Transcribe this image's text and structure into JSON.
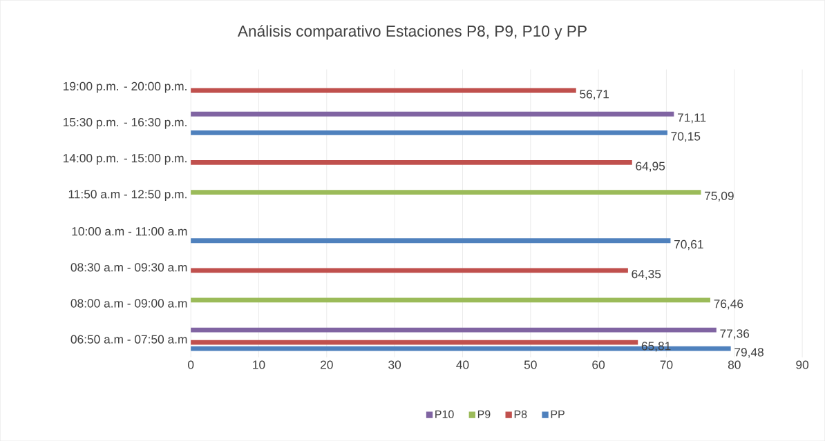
{
  "chart_data": {
    "type": "bar",
    "orientation": "horizontal",
    "title": "Análisis comparativo Estaciones P8, P9, P10 y PP",
    "categories": [
      "19:00 p.m. - 20:00 p.m.",
      "15:30 p.m. - 16:30 p.m.",
      "14:00 p.m. - 15:00 p.m.",
      "11:50 a.m - 12:50 p.m.",
      "10:00 a.m  - 11:00 a.m",
      "08:30 a.m - 09:30 a.m",
      "08:00 a.m - 09:00 a.m",
      "06:50 a.m - 07:50 a.m"
    ],
    "series": [
      {
        "name": "P10",
        "color": "#8064a2",
        "values": [
          null,
          71.11,
          null,
          null,
          null,
          null,
          null,
          77.36
        ],
        "value_labels": [
          null,
          "71,11",
          null,
          null,
          null,
          null,
          null,
          "77,36"
        ]
      },
      {
        "name": "P9",
        "color": "#9bbb59",
        "values": [
          null,
          null,
          null,
          75.09,
          null,
          null,
          76.46,
          null
        ],
        "value_labels": [
          null,
          null,
          null,
          "75,09",
          null,
          null,
          "76,46",
          null
        ]
      },
      {
        "name": "P8",
        "color": "#c0504d",
        "values": [
          56.71,
          null,
          64.95,
          null,
          null,
          64.35,
          null,
          65.81
        ],
        "value_labels": [
          "56,71",
          null,
          "64,95",
          null,
          null,
          "64,35",
          null,
          "65,81"
        ]
      },
      {
        "name": "PP",
        "color": "#4f81bd",
        "values": [
          null,
          70.15,
          null,
          null,
          70.61,
          null,
          null,
          79.48
        ],
        "value_labels": [
          null,
          "70,15",
          null,
          null,
          "70,61",
          null,
          null,
          "79,48"
        ]
      }
    ],
    "xlim": [
      0,
      90
    ],
    "xticks": [
      0,
      10,
      20,
      30,
      40,
      50,
      60,
      70,
      80,
      90
    ],
    "grid": "x",
    "legend": "bottom"
  }
}
